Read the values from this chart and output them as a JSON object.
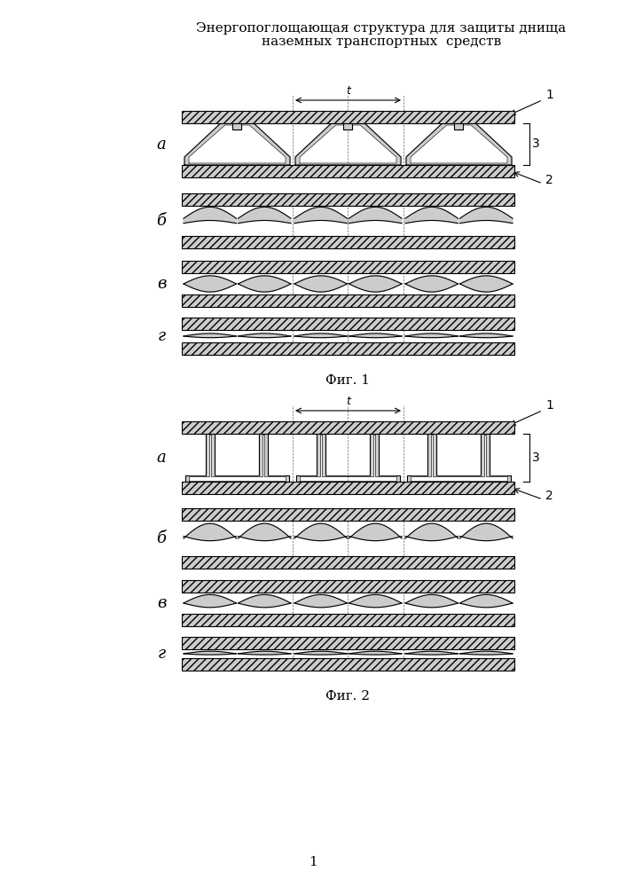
{
  "title_line1": "Энергопоглощающая структура для защиты днища",
  "title_line2": "наземных транспортных  средств",
  "fig1_label": "Фиг. 1",
  "fig2_label": "Фиг. 2",
  "page_num": "1",
  "labels_fig1": [
    "а",
    "б",
    "в",
    "г"
  ],
  "labels_fig2": [
    "а",
    "б",
    "в",
    "г"
  ],
  "hatch_pattern": "////",
  "bg_color": "#ffffff",
  "line_color": "#000000",
  "hatch_color": "#000000",
  "fill_color": "#d8d8d8"
}
